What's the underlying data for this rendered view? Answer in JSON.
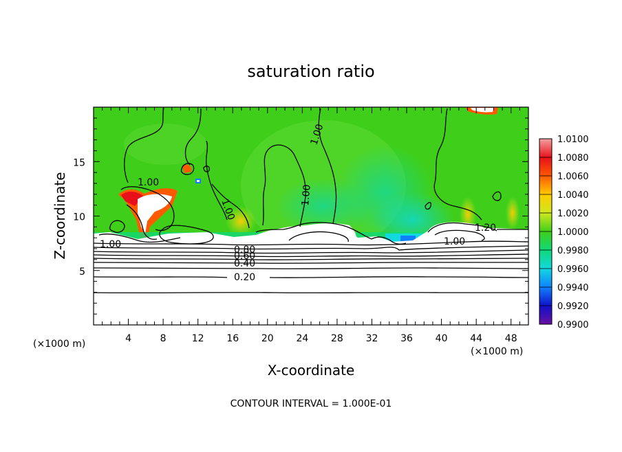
{
  "chart_data": {
    "type": "heatmap",
    "title": "saturation ratio",
    "xlabel": "X-coordinate",
    "ylabel": "Z-coordinate",
    "x_unit": "(×1000 m)",
    "z_unit": "(×1000 m)",
    "xlim": [
      0,
      50
    ],
    "ylim": [
      0,
      20
    ],
    "x_ticks": [
      "4",
      "8",
      "12",
      "16",
      "20",
      "24",
      "28",
      "32",
      "36",
      "40",
      "44",
      "48"
    ],
    "x_tick_values": [
      4,
      8,
      12,
      16,
      20,
      24,
      28,
      32,
      36,
      40,
      44,
      48
    ],
    "y_ticks": [
      "5",
      "10",
      "15"
    ],
    "y_tick_values": [
      5,
      10,
      15
    ],
    "colorbar": {
      "labels": [
        "1.0100",
        "1.0080",
        "1.0060",
        "1.0040",
        "1.0020",
        "1.0000",
        "0.9980",
        "0.9960",
        "0.9940",
        "0.9920",
        "0.9900"
      ],
      "colors": [
        "#f4a0a0",
        "#e8101a",
        "#ff5a00",
        "#ffcc00",
        "#cfe820",
        "#3fcf1a",
        "#10d878",
        "#12d8e0",
        "#1080ff",
        "#1010c8",
        "#6a10a0"
      ]
    },
    "contour_labels": [
      "1.00",
      "1.00",
      "1.00",
      "1.00",
      "1.00",
      "1.00",
      "0.80",
      "0.60",
      "0.40",
      "0.20",
      "1.20"
    ],
    "footer": "CONTOUR INTERVAL = 1.000E-01"
  }
}
